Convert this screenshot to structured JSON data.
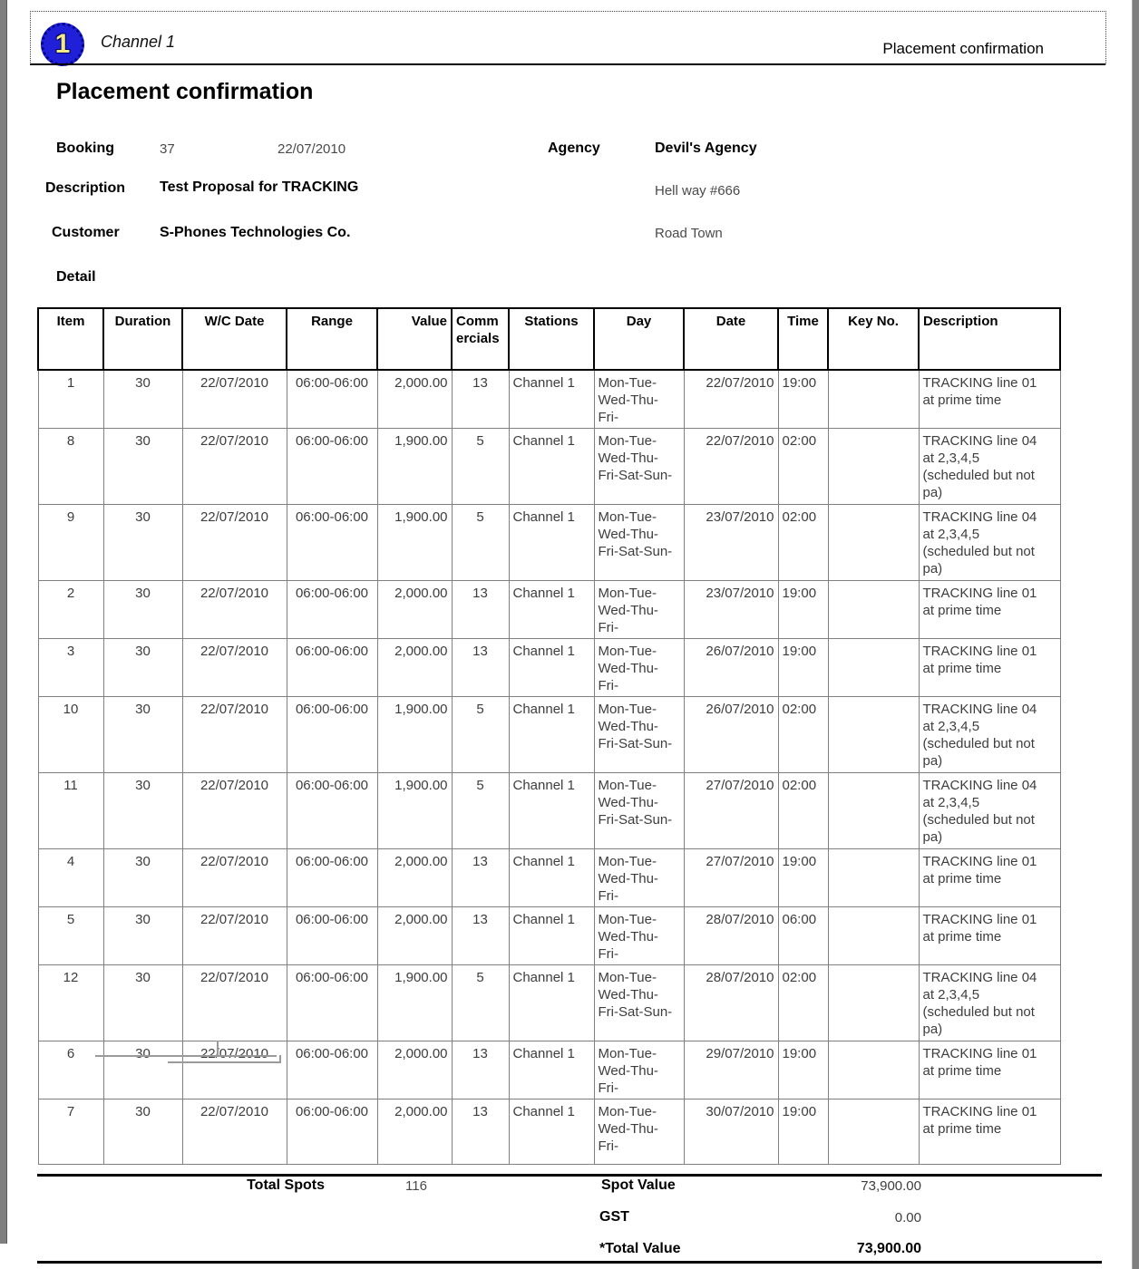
{
  "header": {
    "logo_number": "1",
    "channel_name": "Channel 1",
    "right_title": "Placement confirmation"
  },
  "title": "Placement confirmation",
  "info": {
    "booking_label": "Booking",
    "booking_number": "37",
    "booking_date": "22/07/2010",
    "agency_label": "Agency",
    "agency_name": "Devil's Agency",
    "agency_address1": "Hell way #666",
    "agency_address2": "Road Town",
    "description_label": "Description",
    "description_value": "Test Proposal for TRACKING",
    "customer_label": "Customer",
    "customer_value": "S-Phones Technologies Co.",
    "detail_label": "Detail"
  },
  "table": {
    "columns": [
      "Item",
      "Duration",
      "W/C Date",
      "Range",
      "Value",
      "Comm\nercials",
      "Stations",
      "Day",
      "Date",
      "Time",
      "Key No.",
      "Description"
    ],
    "rows": [
      {
        "item": "1",
        "duration": "30",
        "wc_date": "22/07/2010",
        "range": "06:00-06:00",
        "value": "2,000.00",
        "commercials": "13",
        "station": "Channel 1",
        "day": "Mon-Tue-\nWed-Thu-\nFri-",
        "date": "22/07/2010",
        "time": "19:00",
        "key_no": "",
        "description": "TRACKING line 01\nat prime time"
      },
      {
        "item": "8",
        "duration": "30",
        "wc_date": "22/07/2010",
        "range": "06:00-06:00",
        "value": "1,900.00",
        "commercials": "5",
        "station": "Channel 1",
        "day": "Mon-Tue-\nWed-Thu-\nFri-Sat-Sun-",
        "date": "22/07/2010",
        "time": "02:00",
        "key_no": "",
        "description": "TRACKING line 04\nat 2,3,4,5\n(scheduled but not\npa)"
      },
      {
        "item": "9",
        "duration": "30",
        "wc_date": "22/07/2010",
        "range": "06:00-06:00",
        "value": "1,900.00",
        "commercials": "5",
        "station": "Channel 1",
        "day": "Mon-Tue-\nWed-Thu-\nFri-Sat-Sun-",
        "date": "23/07/2010",
        "time": "02:00",
        "key_no": "",
        "description": "TRACKING line 04\nat 2,3,4,5\n(scheduled but not\npa)"
      },
      {
        "item": "2",
        "duration": "30",
        "wc_date": "22/07/2010",
        "range": "06:00-06:00",
        "value": "2,000.00",
        "commercials": "13",
        "station": "Channel 1",
        "day": "Mon-Tue-\nWed-Thu-\nFri-",
        "date": "23/07/2010",
        "time": "19:00",
        "key_no": "",
        "description": "TRACKING line 01\nat prime time"
      },
      {
        "item": "3",
        "duration": "30",
        "wc_date": "22/07/2010",
        "range": "06:00-06:00",
        "value": "2,000.00",
        "commercials": "13",
        "station": "Channel 1",
        "day": "Mon-Tue-\nWed-Thu-\nFri-",
        "date": "26/07/2010",
        "time": "19:00",
        "key_no": "",
        "description": "TRACKING line 01\nat prime time"
      },
      {
        "item": "10",
        "duration": "30",
        "wc_date": "22/07/2010",
        "range": "06:00-06:00",
        "value": "1,900.00",
        "commercials": "5",
        "station": "Channel 1",
        "day": "Mon-Tue-\nWed-Thu-\nFri-Sat-Sun-",
        "date": "26/07/2010",
        "time": "02:00",
        "key_no": "",
        "description": "TRACKING line 04\nat 2,3,4,5\n(scheduled but not\npa)"
      },
      {
        "item": "11",
        "duration": "30",
        "wc_date": "22/07/2010",
        "range": "06:00-06:00",
        "value": "1,900.00",
        "commercials": "5",
        "station": "Channel 1",
        "day": "Mon-Tue-\nWed-Thu-\nFri-Sat-Sun-",
        "date": "27/07/2010",
        "time": "02:00",
        "key_no": "",
        "description": "TRACKING line 04\nat 2,3,4,5\n(scheduled but not\npa)"
      },
      {
        "item": "4",
        "duration": "30",
        "wc_date": "22/07/2010",
        "range": "06:00-06:00",
        "value": "2,000.00",
        "commercials": "13",
        "station": "Channel 1",
        "day": "Mon-Tue-\nWed-Thu-\nFri-",
        "date": "27/07/2010",
        "time": "19:00",
        "key_no": "",
        "description": "TRACKING line 01\nat prime time"
      },
      {
        "item": "5",
        "duration": "30",
        "wc_date": "22/07/2010",
        "range": "06:00-06:00",
        "value": "2,000.00",
        "commercials": "13",
        "station": "Channel 1",
        "day": "Mon-Tue-\nWed-Thu-\nFri-",
        "date": "28/07/2010",
        "time": "06:00",
        "key_no": "",
        "description": "TRACKING line 01\nat prime time"
      },
      {
        "item": "12",
        "duration": "30",
        "wc_date": "22/07/2010",
        "range": "06:00-06:00",
        "value": "1,900.00",
        "commercials": "5",
        "station": "Channel 1",
        "day": "Mon-Tue-\nWed-Thu-\nFri-Sat-Sun-",
        "date": "28/07/2010",
        "time": "02:00",
        "key_no": "",
        "description": "TRACKING line 04\nat 2,3,4,5\n(scheduled but not\npa)"
      },
      {
        "item": "6",
        "duration": "30",
        "wc_date": "22/07/2010",
        "range": "06:00-06:00",
        "value": "2,000.00",
        "commercials": "13",
        "station": "Channel 1",
        "day": "Mon-Tue-\nWed-Thu-\nFri-",
        "date": "29/07/2010",
        "time": "19:00",
        "key_no": "",
        "description": "TRACKING line 01\nat prime time"
      },
      {
        "item": "7",
        "duration": "30",
        "wc_date": "22/07/2010",
        "range": "06:00-06:00",
        "value": "2,000.00",
        "commercials": "13",
        "station": "Channel 1",
        "day": "Mon-Tue-\nWed-Thu-\nFri-",
        "date": "30/07/2010",
        "time": "19:00",
        "key_no": "",
        "description": "TRACKING line 01\nat prime time"
      }
    ]
  },
  "totals": {
    "total_spots_label": "Total Spots",
    "total_spots_value": "116",
    "spot_value_label": "Spot Value",
    "spot_value": "73,900.00",
    "gst_label": "GST",
    "gst_value": "0.00",
    "total_value_label": "*Total Value",
    "total_value": "73,900.00"
  },
  "colors": {
    "logo_blue": "#2020d8",
    "logo_ring": "#000090",
    "logo_digit_yellow": "#f2ea86",
    "edge_gray": "#7f7f7f",
    "body_border_gray": "#808080"
  }
}
